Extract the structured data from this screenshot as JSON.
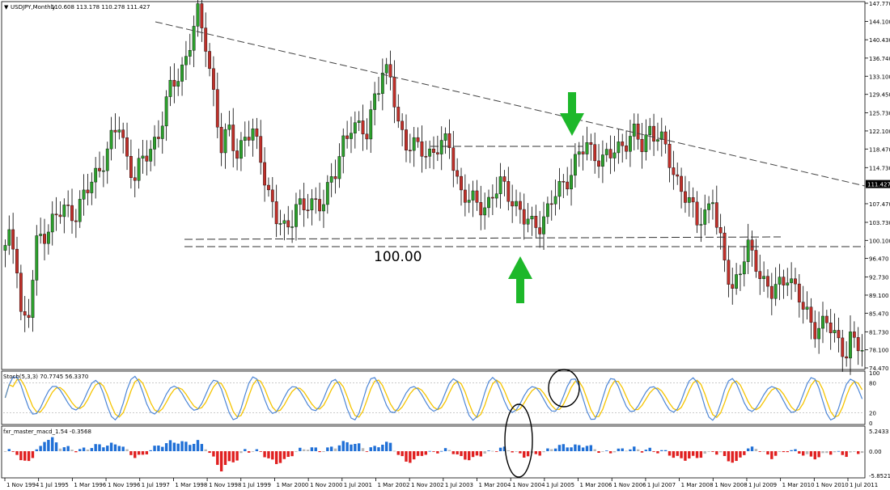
{
  "header": {
    "symbol": "USDJPY,Monthly",
    "ohlc": "110.608 113.178 110.278 111.427"
  },
  "colors": {
    "up": "#2ca02c",
    "down": "#c0302a",
    "up_wick": "#000000",
    "stoch_main": "#4d86d6",
    "stoch_signal": "#f5c400",
    "macd_up": "#1f6fd6",
    "macd_down": "#e02020",
    "macd_flat": "#b8b8b8",
    "arrow": "#1db82a"
  },
  "price_pane": {
    "y_ticks": [
      "147.770",
      "144.100",
      "140.430",
      "136.740",
      "133.100",
      "129.450",
      "125.730",
      "122.100",
      "118.470",
      "114.730",
      "111.427",
      "107.470",
      "103.730",
      "100.100",
      "96.470",
      "92.730",
      "89.100",
      "85.470",
      "81.730",
      "78.100",
      "74.470"
    ],
    "current_price": "111.427",
    "level_label": "100.00",
    "ylim": [
      74.47,
      147.77
    ]
  },
  "stoch_pane": {
    "label": "Stoch(5,3,3) 70.7745 56.3370",
    "y_ticks": [
      "100",
      "80",
      "20",
      "0"
    ]
  },
  "macd_pane": {
    "label": "fxr_master_macd_1.54 -0.3568",
    "y_ticks": [
      "5.2433",
      "0.00",
      "-5.8521"
    ]
  },
  "x_axis": {
    "labels": [
      "1 Nov 1994",
      "1 Jul 1995",
      "1 Mar 1996",
      "1 Nov 1996",
      "1 Jul 1997",
      "1 Mar 1998",
      "1 Nov 1998",
      "1 Jul 1999",
      "1 Mar 2000",
      "1 Nov 2000",
      "1 Jul 2001",
      "1 Mar 2002",
      "1 Nov 2002",
      "1 Jul 2003",
      "1 Mar 2004",
      "1 Nov 2004",
      "1 Jul 2005",
      "1 Mar 2006",
      "1 Nov 2006",
      "1 Jul 2007",
      "1 Mar 2008",
      "1 Nov 2008",
      "1 Jul 2009",
      "1 Mar 2010",
      "1 Nov 2010",
      "1 Jul 2011"
    ]
  },
  "chart_data": {
    "type": "candlestick",
    "symbol": "USDJPY",
    "timeframe": "Monthly",
    "anchors": [
      [
        0,
        98
      ],
      [
        1,
        100
      ],
      [
        2,
        99
      ],
      [
        3,
        96
      ],
      [
        4,
        86
      ],
      [
        5,
        84
      ],
      [
        6,
        85
      ],
      [
        7,
        92
      ],
      [
        8,
        99
      ],
      [
        9,
        101
      ],
      [
        12,
        104
      ],
      [
        15,
        106
      ],
      [
        18,
        106
      ],
      [
        21,
        110
      ],
      [
        24,
        115
      ],
      [
        27,
        120
      ],
      [
        29,
        123
      ],
      [
        31,
        117
      ],
      [
        33,
        113
      ],
      [
        36,
        117
      ],
      [
        39,
        122
      ],
      [
        42,
        130
      ],
      [
        45,
        135
      ],
      [
        47,
        140
      ],
      [
        49,
        145
      ],
      [
        51,
        140
      ],
      [
        53,
        130
      ],
      [
        55,
        118
      ],
      [
        57,
        122
      ],
      [
        59,
        118
      ],
      [
        61,
        121
      ],
      [
        63,
        121
      ],
      [
        65,
        117
      ],
      [
        67,
        110
      ],
      [
        69,
        104
      ],
      [
        71,
        102
      ],
      [
        72,
        103
      ],
      [
        74,
        108
      ],
      [
        76,
        106
      ],
      [
        78,
        107
      ],
      [
        81,
        109
      ],
      [
        84,
        113
      ],
      [
        86,
        120
      ],
      [
        88,
        124
      ],
      [
        90,
        122
      ],
      [
        92,
        121
      ],
      [
        94,
        130
      ],
      [
        96,
        134
      ],
      [
        98,
        132
      ],
      [
        100,
        124
      ],
      [
        102,
        120
      ],
      [
        105,
        118
      ],
      [
        108,
        118
      ],
      [
        110,
        119
      ],
      [
        113,
        119
      ],
      [
        116,
        110
      ],
      [
        118,
        108
      ],
      [
        120,
        107
      ],
      [
        123,
        108
      ],
      [
        126,
        111
      ],
      [
        129,
        109
      ],
      [
        132,
        104
      ],
      [
        134,
        103
      ],
      [
        136,
        104
      ],
      [
        138,
        106
      ],
      [
        140,
        109
      ],
      [
        143,
        113
      ],
      [
        146,
        117
      ],
      [
        148,
        119
      ],
      [
        150,
        118
      ],
      [
        152,
        116
      ],
      [
        154,
        117
      ],
      [
        157,
        120
      ],
      [
        160,
        121
      ],
      [
        162,
        119
      ],
      [
        164,
        123
      ],
      [
        166,
        121
      ],
      [
        168,
        118
      ],
      [
        170,
        114
      ],
      [
        172,
        111
      ],
      [
        174,
        107
      ],
      [
        176,
        104
      ],
      [
        178,
        106
      ],
      [
        180,
        109
      ],
      [
        181,
        102
      ],
      [
        183,
        96
      ],
      [
        185,
        91
      ],
      [
        187,
        94
      ],
      [
        189,
        98
      ],
      [
        191,
        96
      ],
      [
        193,
        92
      ],
      [
        195,
        89
      ],
      [
        197,
        91
      ],
      [
        199,
        94
      ],
      [
        201,
        90
      ],
      [
        203,
        86
      ],
      [
        206,
        83
      ],
      [
        209,
        83
      ],
      [
        212,
        80
      ],
      [
        214,
        78
      ],
      [
        215,
        80
      ],
      [
        216,
        79
      ],
      [
        218,
        78
      ]
    ],
    "annotations": {
      "trendline": "descending from 1998 high to 2011",
      "support_level": "100.00",
      "arrows": [
        "down at 2005 resistance",
        "up at 2004-2005 low"
      ]
    }
  }
}
